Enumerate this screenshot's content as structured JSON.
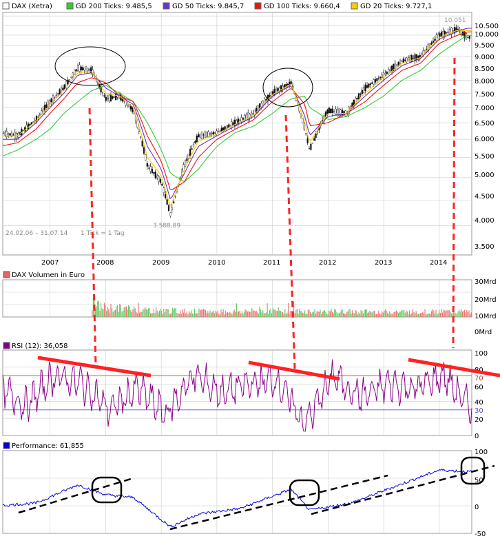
{
  "legend_top": {
    "items": [
      {
        "label": "DAX (Xetra)",
        "color": "#ffffff"
      },
      {
        "label": "GD 200 Ticks: 9.485,5",
        "color": "#33cc33"
      },
      {
        "label": "GD 50 Ticks: 9.845,7",
        "color": "#6633cc"
      },
      {
        "label": "GD 100 Ticks: 9.660,4",
        "color": "#ee1111"
      },
      {
        "label": "GD 20 Ticks: 9.727,1",
        "color": "#ffcc00"
      }
    ]
  },
  "price_panel": {
    "yticks": [
      "10.500",
      "10.000",
      "9.500",
      "9.000",
      "8.500",
      "8.000",
      "7.500",
      "7.000",
      "6.500",
      "6.000",
      "5.500",
      "5.000",
      "4.500",
      "4.000",
      "3.500"
    ],
    "high_label": "10.051",
    "low_label": "3.588,89",
    "range_label": "24.02.06 – 31.07.14",
    "tick_label": "1 Tick = 1 Tag"
  },
  "volume_panel": {
    "title": "DAX Volumen in Euro",
    "yticks": [
      "30Mrd",
      "20Mrd",
      "10Mrd",
      "0Mrd"
    ]
  },
  "rsi_panel": {
    "title": "RSI (12): 36,058",
    "yticks": [
      "100",
      "80",
      "70",
      "60",
      "40",
      "30",
      "20",
      "0"
    ],
    "upper_band": 70,
    "lower_band": 30
  },
  "performance_panel": {
    "title": "Performance: 61,855",
    "yticks": [
      "100",
      "50",
      "0",
      "-50"
    ]
  },
  "x_axis": {
    "labels": [
      "2007",
      "2008",
      "2009",
      "2010",
      "2011",
      "2012",
      "2013",
      "2014"
    ]
  },
  "colors": {
    "gd200": "#33cc33",
    "gd50": "#6633cc",
    "gd100": "#ee1111",
    "gd20": "#ffcc00",
    "rsi": "#880088",
    "performance": "#0000dd",
    "annotation_red": "#ff2222",
    "annotation_black": "#000000",
    "grid": "#cccccc"
  },
  "chart_data": [
    {
      "type": "line",
      "title": "DAX (Xetra)",
      "x": [
        "2006-02",
        "2006-06",
        "2006-10",
        "2007-01",
        "2007-04",
        "2007-07",
        "2007-10",
        "2008-01",
        "2008-04",
        "2008-07",
        "2008-10",
        "2009-01",
        "2009-03",
        "2009-06",
        "2009-09",
        "2010-01",
        "2010-05",
        "2010-09",
        "2011-01",
        "2011-05",
        "2011-08",
        "2011-09",
        "2012-01",
        "2012-05",
        "2012-09",
        "2013-01",
        "2013-05",
        "2013-09",
        "2014-01",
        "2014-05",
        "2014-07"
      ],
      "series": [
        {
          "name": "DAX (Xetra)",
          "values": [
            5700,
            5600,
            6100,
            6700,
            7200,
            8000,
            7900,
            6800,
            6900,
            6400,
            4800,
            4400,
            3700,
            4800,
            5600,
            5700,
            6000,
            6300,
            7000,
            7400,
            5800,
            5200,
            6400,
            6300,
            7200,
            7700,
            8300,
            8500,
            9500,
            9800,
            9400
          ]
        },
        {
          "name": "GD 200 Ticks: 9.485,5",
          "values": [
            5000,
            5200,
            5500,
            5800,
            6300,
            6700,
            7100,
            7300,
            7000,
            6700,
            6000,
            5200,
            4600,
            4400,
            4700,
            5300,
            5700,
            5900,
            6300,
            6800,
            6900,
            6500,
            6100,
            6200,
            6500,
            6900,
            7500,
            7900,
            8600,
            9200,
            9485.5
          ]
        },
        {
          "name": "GD 100 Ticks: 9.660,4",
          "values": [
            5300,
            5400,
            5800,
            6300,
            6800,
            7400,
            7600,
            7400,
            6900,
            6700,
            5600,
            4900,
            4200,
            4400,
            5000,
            5500,
            5800,
            6100,
            6700,
            7200,
            6600,
            5900,
            6000,
            6300,
            6700,
            7300,
            7900,
            8200,
            9100,
            9500,
            9660.4
          ]
        },
        {
          "name": "GD 50 Ticks: 9.845,7",
          "values": [
            5500,
            5500,
            6000,
            6500,
            7000,
            7700,
            7800,
            7200,
            6900,
            6600,
            5300,
            4700,
            4000,
            4600,
            5300,
            5600,
            5900,
            6200,
            6900,
            7300,
            6200,
            5600,
            6200,
            6300,
            6900,
            7500,
            8100,
            8400,
            9300,
            9700,
            9845.7
          ]
        },
        {
          "name": "GD 20 Ticks: 9.727,1",
          "values": [
            5600,
            5600,
            6050,
            6600,
            7100,
            7800,
            7850,
            7000,
            6900,
            6500,
            5000,
            4550,
            3850,
            4700,
            5450,
            5650,
            5950,
            6250,
            6950,
            7350,
            6000,
            5400,
            6300,
            6300,
            7000,
            7600,
            8200,
            8450,
            9400,
            9750,
            9727.1
          ]
        }
      ],
      "ylim": [
        3000,
        10500
      ],
      "annotations": {
        "high": 10051,
        "low": 3588.89
      }
    },
    {
      "type": "bar",
      "title": "DAX Volumen in Euro",
      "x": [
        "2007-10",
        "2008",
        "2009",
        "2010",
        "2011",
        "2012",
        "2013",
        "2014"
      ],
      "series": [
        {
          "name": "DAX Volumen in Euro",
          "values": [
            12,
            9,
            6,
            5,
            6,
            5,
            5,
            5
          ]
        }
      ],
      "ylim": [
        0,
        30
      ],
      "ylabel": "Mrd"
    },
    {
      "type": "line",
      "title": "RSI (12): 36,058",
      "x": [
        "2006-02",
        "2006-08",
        "2007-02",
        "2007-08",
        "2008-02",
        "2008-08",
        "2009-02",
        "2009-08",
        "2010-02",
        "2010-08",
        "2011-02",
        "2011-08",
        "2012-02",
        "2012-08",
        "2013-02",
        "2013-08",
        "2014-02",
        "2014-07"
      ],
      "series": [
        {
          "name": "RSI (12): 36,058",
          "values": [
            55,
            35,
            70,
            60,
            30,
            55,
            25,
            70,
            50,
            60,
            65,
            12,
            70,
            45,
            60,
            55,
            70,
            36.058
          ]
        }
      ],
      "ylim": [
        0,
        100
      ]
    },
    {
      "type": "line",
      "title": "Performance: 61,855",
      "x": [
        "2006-02",
        "2006-10",
        "2007-07",
        "2008-01",
        "2008-07",
        "2009-03",
        "2009-09",
        "2010-06",
        "2011-05",
        "2011-09",
        "2012-06",
        "2013-05",
        "2014-01",
        "2014-07"
      ],
      "series": [
        {
          "name": "Performance: 61,855",
          "values": [
            0,
            5,
            38,
            20,
            15,
            -38,
            -15,
            -5,
            30,
            -8,
            5,
            40,
            65,
            61.855
          ]
        }
      ],
      "ylim": [
        -50,
        100
      ]
    }
  ]
}
